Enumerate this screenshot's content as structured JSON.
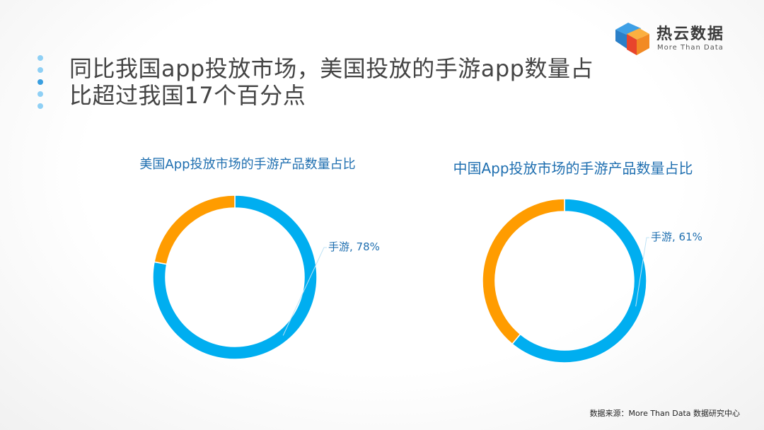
{
  "logo": {
    "title": "热云数据",
    "subtitle": "More Than Data"
  },
  "headline": {
    "line1": "同比我国app投放市场，美国投放的手游app数量占",
    "line2": "比超过我国17个百分点"
  },
  "colors": {
    "accent_blue": "#00aef0",
    "accent_orange": "#ff9c00",
    "title_blue": "#1f6fb0"
  },
  "chart_data": [
    {
      "type": "pie",
      "style": "donut",
      "title": "美国App投放市场的手游产品数量占比",
      "slices": [
        {
          "label": "手游",
          "value": 78,
          "color": "#00aef0"
        },
        {
          "label": "",
          "value": 22,
          "color": "#ff9c00"
        }
      ],
      "data_label": "手游, 78%"
    },
    {
      "type": "pie",
      "style": "donut",
      "title": "中国App投放市场的手游产品数量占比",
      "slices": [
        {
          "label": "手游",
          "value": 61,
          "color": "#00aef0"
        },
        {
          "label": "",
          "value": 39,
          "color": "#ff9c00"
        }
      ],
      "data_label": "手游, 61%"
    }
  ],
  "footer": {
    "source": "数据来源：More Than Data 数据研究中心"
  }
}
